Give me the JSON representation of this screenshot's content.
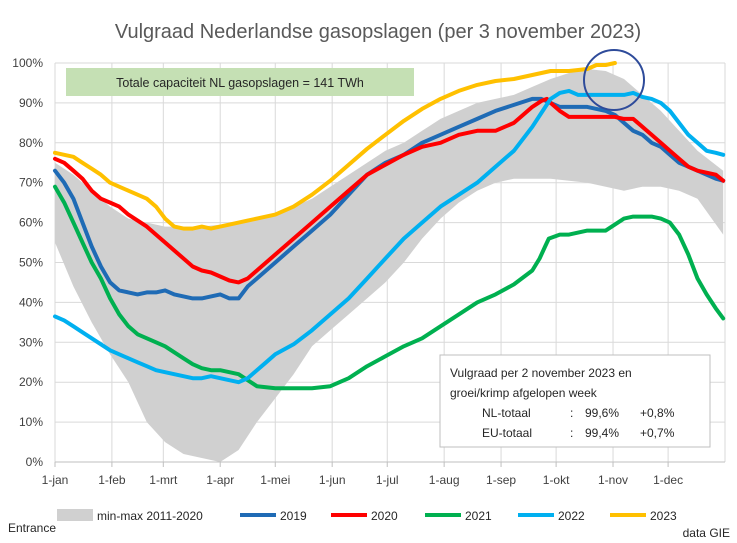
{
  "chart_data": {
    "type": "line",
    "title": "Vulgraad Nederlandse gasopslagen (per 3 november 2023)",
    "ylim": [
      0,
      100
    ],
    "y_ticks": [
      "0%",
      "10%",
      "20%",
      "30%",
      "40%",
      "50%",
      "60%",
      "70%",
      "80%",
      "90%",
      "100%"
    ],
    "x_tick_days": [
      0,
      31,
      59,
      90,
      120,
      151,
      181,
      212,
      243,
      273,
      304,
      334
    ],
    "x_ticks": [
      "1-jan",
      "1-feb",
      "1-mrt",
      "1-apr",
      "1-mei",
      "1-jun",
      "1-jul",
      "1-aug",
      "1-sep",
      "1-okt",
      "1-nov",
      "1-dec"
    ],
    "grid": true,
    "legend_position": "bottom",
    "band": {
      "name": "min-max 2011-2020",
      "color": "#d0d0d0",
      "x": [
        0,
        10,
        20,
        30,
        40,
        50,
        60,
        70,
        80,
        90,
        100,
        110,
        120,
        130,
        140,
        150,
        160,
        170,
        180,
        190,
        200,
        210,
        220,
        230,
        240,
        250,
        260,
        270,
        280,
        290,
        300,
        310,
        320,
        330,
        340,
        350,
        364
      ],
      "min": [
        55,
        44,
        35,
        27,
        20,
        10,
        5,
        2,
        1,
        0,
        3,
        10,
        16,
        22,
        29,
        33,
        37,
        41,
        45,
        50,
        56,
        61,
        65,
        68,
        70,
        71,
        71,
        71,
        70.5,
        70,
        69,
        68,
        69,
        69,
        68,
        66,
        57
      ],
      "max": [
        75,
        72,
        68,
        64,
        61,
        60,
        59,
        59,
        59,
        59.5,
        60,
        61,
        62,
        64,
        66,
        69,
        72,
        75,
        78,
        80,
        83,
        86,
        88,
        90,
        91,
        92,
        94,
        96,
        97.5,
        98.5,
        98,
        96,
        92,
        88,
        83,
        78,
        73
      ]
    },
    "series": [
      {
        "name": "2019",
        "color": "#1f6bb5",
        "x": [
          0,
          5,
          10,
          15,
          20,
          25,
          30,
          35,
          40,
          45,
          50,
          55,
          60,
          65,
          70,
          75,
          80,
          85,
          90,
          95,
          100,
          105,
          110,
          115,
          120,
          130,
          140,
          150,
          160,
          170,
          180,
          190,
          200,
          210,
          220,
          230,
          240,
          250,
          260,
          265,
          270,
          275,
          280,
          290,
          295,
          300,
          305,
          310,
          315,
          320,
          325,
          330,
          335,
          340,
          345,
          350,
          355,
          360,
          364
        ],
        "y": [
          73,
          70,
          66,
          60,
          54,
          49,
          45,
          43,
          42.5,
          42,
          42.5,
          42.5,
          43,
          42,
          41.5,
          41,
          41,
          41.5,
          42,
          41,
          41,
          44,
          46,
          48,
          50,
          54,
          58,
          62,
          67,
          72,
          75,
          77,
          80,
          82,
          84,
          86,
          88,
          89.5,
          91,
          91,
          90,
          89,
          89,
          89,
          88.5,
          88,
          87,
          85,
          83,
          82,
          80,
          79,
          77,
          75,
          74,
          73,
          72,
          71,
          70.5
        ]
      },
      {
        "name": "2020",
        "color": "#ff0000",
        "x": [
          0,
          5,
          10,
          15,
          20,
          25,
          30,
          35,
          40,
          45,
          50,
          55,
          60,
          65,
          70,
          75,
          80,
          85,
          90,
          95,
          100,
          105,
          110,
          115,
          120,
          130,
          140,
          150,
          160,
          170,
          180,
          190,
          200,
          210,
          220,
          230,
          240,
          250,
          260,
          265,
          268,
          270,
          275,
          280,
          285,
          290,
          295,
          300,
          305,
          310,
          315,
          320,
          325,
          330,
          335,
          340,
          345,
          350,
          355,
          360,
          364
        ],
        "y": [
          76,
          75,
          73,
          71,
          68,
          66,
          65,
          64,
          62,
          60.5,
          59,
          57,
          55,
          53,
          51,
          49,
          48,
          47.5,
          46.5,
          45.5,
          45,
          46,
          48,
          50,
          52,
          56,
          60,
          64,
          68,
          72,
          74.5,
          77,
          79,
          80,
          82,
          83,
          83,
          85,
          89,
          90.5,
          91,
          90,
          88,
          86.5,
          86.5,
          86.5,
          86.5,
          86.5,
          86.5,
          86,
          86,
          84,
          82,
          80,
          78,
          76,
          74,
          73,
          72.5,
          72,
          70.5
        ]
      },
      {
        "name": "2021",
        "color": "#00b050",
        "x": [
          0,
          5,
          10,
          15,
          20,
          25,
          30,
          35,
          40,
          45,
          50,
          55,
          60,
          65,
          70,
          75,
          80,
          85,
          90,
          95,
          100,
          110,
          120,
          130,
          140,
          150,
          160,
          170,
          180,
          190,
          200,
          210,
          220,
          230,
          240,
          250,
          260,
          264,
          267,
          269,
          275,
          280,
          290,
          300,
          310,
          315,
          320,
          325,
          330,
          335,
          340,
          345,
          350,
          355,
          360,
          364
        ],
        "y": [
          69,
          65,
          60,
          55,
          50,
          46,
          41,
          37,
          34,
          32,
          31,
          30,
          29,
          27.5,
          26,
          24.5,
          23.5,
          23,
          23,
          22.5,
          22,
          19,
          18.5,
          18.5,
          18.5,
          19,
          21,
          24,
          26.5,
          29,
          31,
          34,
          37,
          40,
          42,
          44.5,
          48,
          51,
          54,
          56,
          57,
          57,
          58,
          58,
          61,
          61.5,
          61.5,
          61.5,
          61,
          60,
          57,
          52,
          46,
          42,
          38.5,
          36
        ]
      },
      {
        "name": "2022",
        "color": "#00b0f0",
        "x": [
          0,
          5,
          10,
          15,
          20,
          25,
          30,
          35,
          40,
          45,
          50,
          55,
          60,
          65,
          70,
          75,
          80,
          85,
          90,
          95,
          100,
          105,
          110,
          115,
          120,
          130,
          140,
          150,
          160,
          170,
          180,
          190,
          200,
          210,
          220,
          230,
          240,
          250,
          260,
          265,
          270,
          275,
          280,
          285,
          290,
          295,
          300,
          305,
          310,
          315,
          320,
          325,
          330,
          335,
          340,
          345,
          350,
          355,
          360,
          364
        ],
        "y": [
          36.5,
          35.5,
          34,
          32.5,
          31,
          29.5,
          28,
          27,
          26,
          25,
          24,
          23,
          22.5,
          22,
          21.5,
          21,
          21,
          21.5,
          21,
          20.5,
          20,
          21,
          23,
          25,
          27,
          29.5,
          33,
          37,
          41,
          46,
          51,
          56,
          60,
          64,
          67,
          70,
          74,
          78,
          84,
          87.5,
          91,
          92.5,
          93,
          92,
          92,
          92,
          92,
          92,
          92,
          92.5,
          91.5,
          91,
          90,
          88,
          85,
          82,
          80,
          78,
          77.5,
          77
        ]
      },
      {
        "name": "2023",
        "color": "#ffc000",
        "x": [
          0,
          5,
          10,
          15,
          20,
          25,
          30,
          35,
          40,
          45,
          50,
          55,
          60,
          65,
          70,
          75,
          80,
          85,
          90,
          95,
          100,
          105,
          110,
          115,
          120,
          130,
          140,
          150,
          160,
          170,
          180,
          190,
          200,
          210,
          220,
          230,
          240,
          250,
          260,
          270,
          280,
          290,
          295,
          300,
          305
        ],
        "y": [
          77.5,
          77,
          76.5,
          75,
          73.5,
          72,
          70,
          69,
          68,
          67,
          66,
          64,
          61,
          59,
          58.5,
          58.5,
          59,
          58.5,
          59,
          59.5,
          60,
          60.5,
          61,
          61.5,
          62,
          64,
          67,
          70.5,
          74.5,
          78.5,
          82,
          85.5,
          88.5,
          91,
          93,
          94.5,
          95.5,
          96,
          97,
          98,
          98,
          98.5,
          99.5,
          99.5,
          100
        ]
      }
    ]
  },
  "capacity_note": "Totale capaciteit NL gasopslagen = 141 TWh",
  "info_box": {
    "line1": "Vulgraad per 2 november 2023 en",
    "line2": "groei/krimp afgelopen week",
    "rows": [
      {
        "label": "NL-totaal",
        "colon": ":",
        "value": "99,6%",
        "change": "+0,8%"
      },
      {
        "label": "EU-totaal",
        "colon": ":",
        "value": "99,4%",
        "change": "+0,7%"
      }
    ]
  },
  "legend": [
    "min-max 2011-2020",
    "2019",
    "2020",
    "2021",
    "2022",
    "2023"
  ],
  "footer_left": "Entrance",
  "footer_right": "data GIE",
  "colors": {
    "capacity_box": "#c5e0b4",
    "circle": "#2e4b9a",
    "band": "#d0d0d0"
  }
}
